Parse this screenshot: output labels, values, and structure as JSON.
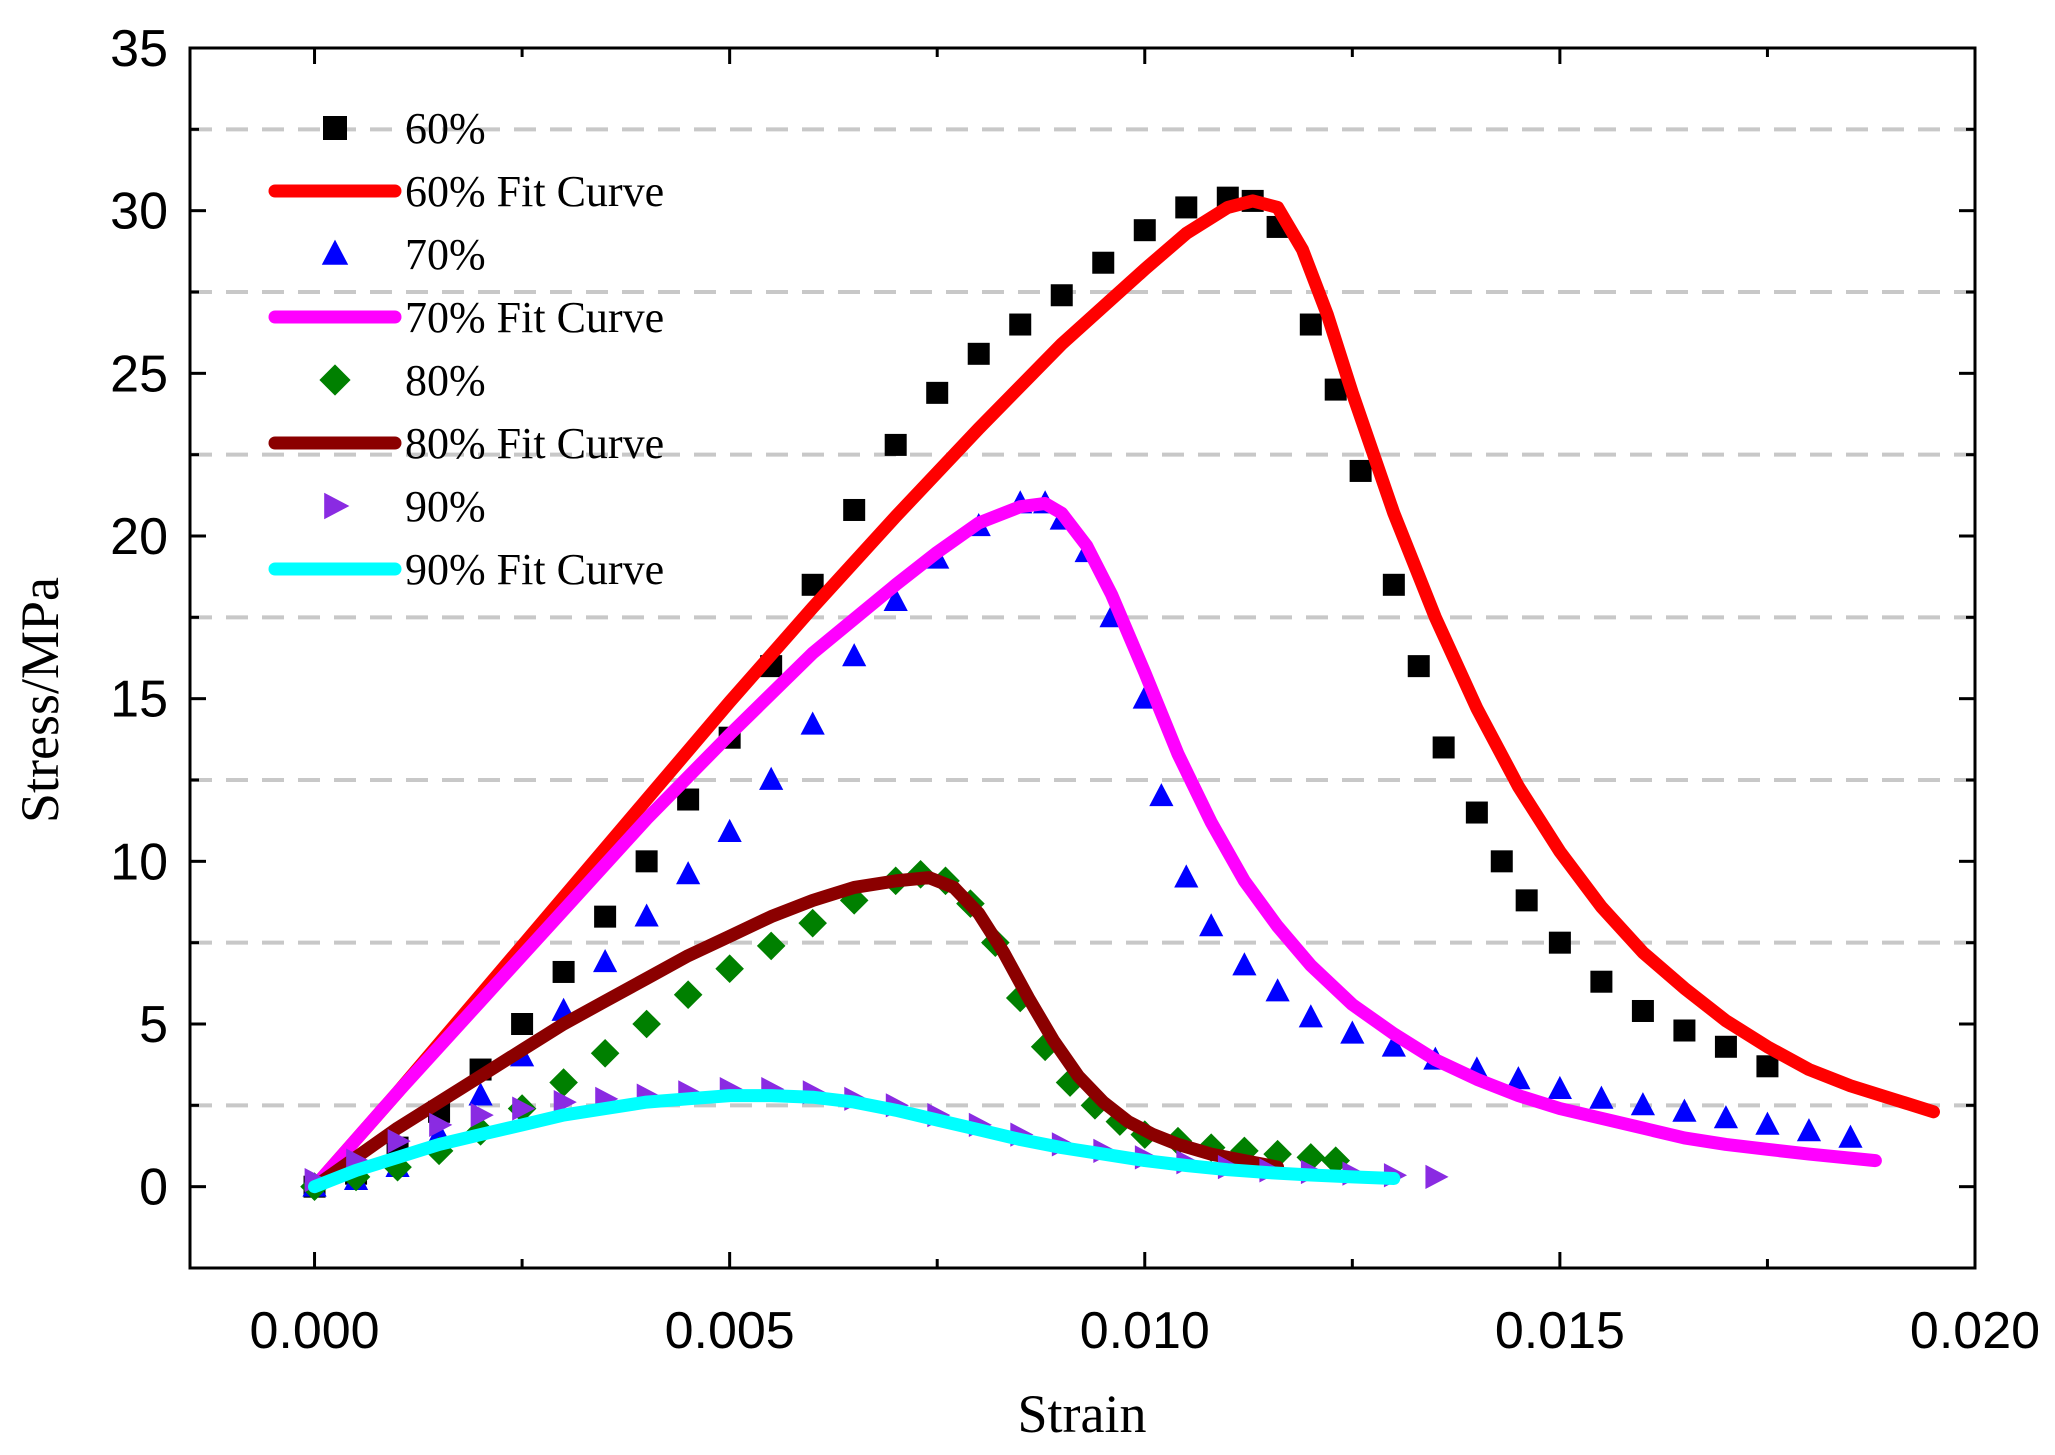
{
  "chart_data": {
    "type": "scatter",
    "title": "",
    "xlabel": "Strain",
    "ylabel": "Stress/MPa",
    "xlim": [
      -0.0015,
      0.02
    ],
    "ylim": [
      -2.5,
      35
    ],
    "xticks": [
      0.0,
      0.005,
      0.01,
      0.015,
      0.02
    ],
    "xtick_labels": [
      "0.000",
      "0.005",
      "0.010",
      "0.015",
      "0.020"
    ],
    "yticks": [
      0,
      5,
      10,
      15,
      20,
      25,
      30,
      35
    ],
    "ytick_labels": [
      "0",
      "5",
      "10",
      "15",
      "20",
      "25",
      "30",
      "35"
    ],
    "grid_dashed_y": [
      2.5,
      7.5,
      12.5,
      17.5,
      22.5,
      27.5,
      32.5
    ],
    "legend_position": "top-left",
    "series": [
      {
        "name": "60%",
        "kind": "markers",
        "marker": "square",
        "color": "#000000",
        "x": [
          0.0,
          0.0005,
          0.001,
          0.0015,
          0.002,
          0.0025,
          0.003,
          0.0035,
          0.004,
          0.0045,
          0.005,
          0.0055,
          0.006,
          0.0065,
          0.007,
          0.0075,
          0.008,
          0.0085,
          0.009,
          0.0095,
          0.01,
          0.0105,
          0.011,
          0.0113,
          0.0116,
          0.012,
          0.0123,
          0.0126,
          0.013,
          0.0133,
          0.0136,
          0.014,
          0.0143,
          0.0146,
          0.015,
          0.0155,
          0.016,
          0.0165,
          0.017,
          0.0175
        ],
        "y": [
          0.0,
          0.4,
          1.2,
          2.3,
          3.6,
          5.0,
          6.6,
          8.3,
          10.0,
          11.9,
          13.8,
          16.0,
          18.5,
          20.8,
          22.8,
          24.4,
          25.6,
          26.5,
          27.4,
          28.4,
          29.4,
          30.1,
          30.4,
          30.3,
          29.5,
          26.5,
          24.5,
          22.0,
          18.5,
          16.0,
          13.5,
          11.5,
          10.0,
          8.8,
          7.5,
          6.3,
          5.4,
          4.8,
          4.3,
          3.7
        ]
      },
      {
        "name": "60% Fit Curve",
        "kind": "line",
        "color": "#ff0000",
        "x": [
          0.0,
          0.001,
          0.002,
          0.003,
          0.004,
          0.005,
          0.006,
          0.007,
          0.008,
          0.009,
          0.01,
          0.0105,
          0.011,
          0.0113,
          0.0116,
          0.0119,
          0.0122,
          0.0125,
          0.013,
          0.0135,
          0.014,
          0.0145,
          0.015,
          0.0155,
          0.016,
          0.0165,
          0.017,
          0.0175,
          0.018,
          0.0185,
          0.019,
          0.0195
        ],
        "y": [
          0.0,
          2.9,
          5.9,
          8.9,
          11.9,
          14.9,
          17.8,
          20.6,
          23.3,
          25.9,
          28.2,
          29.3,
          30.1,
          30.3,
          30.1,
          28.8,
          26.8,
          24.4,
          20.7,
          17.5,
          14.7,
          12.3,
          10.3,
          8.6,
          7.2,
          6.1,
          5.1,
          4.3,
          3.6,
          3.1,
          2.7,
          2.3
        ]
      },
      {
        "name": "70%",
        "kind": "markers",
        "marker": "triangle-up",
        "color": "#0000ff",
        "x": [
          0.0,
          0.0005,
          0.001,
          0.0015,
          0.002,
          0.0025,
          0.003,
          0.0035,
          0.004,
          0.0045,
          0.005,
          0.0055,
          0.006,
          0.0065,
          0.007,
          0.0075,
          0.008,
          0.0085,
          0.0088,
          0.009,
          0.0093,
          0.0096,
          0.01,
          0.0102,
          0.0105,
          0.0108,
          0.0112,
          0.0116,
          0.012,
          0.0125,
          0.013,
          0.0135,
          0.014,
          0.0145,
          0.015,
          0.0155,
          0.016,
          0.0165,
          0.017,
          0.0175,
          0.018,
          0.0185
        ],
        "y": [
          0.0,
          0.2,
          0.6,
          1.6,
          2.8,
          4.0,
          5.4,
          6.9,
          8.3,
          9.6,
          10.9,
          12.5,
          14.2,
          16.3,
          18.0,
          19.3,
          20.3,
          21.0,
          21.0,
          20.5,
          19.5,
          17.5,
          15.0,
          12.0,
          9.5,
          8.0,
          6.8,
          6.0,
          5.2,
          4.7,
          4.3,
          3.9,
          3.6,
          3.3,
          3.0,
          2.7,
          2.5,
          2.3,
          2.1,
          1.9,
          1.7,
          1.5
        ]
      },
      {
        "name": "70% Fit Curve",
        "kind": "line",
        "color": "#ff00ff",
        "x": [
          0.0,
          0.001,
          0.002,
          0.003,
          0.004,
          0.005,
          0.006,
          0.007,
          0.0075,
          0.008,
          0.0085,
          0.0088,
          0.009,
          0.0093,
          0.0096,
          0.01,
          0.0104,
          0.0108,
          0.0112,
          0.0116,
          0.012,
          0.0125,
          0.013,
          0.0135,
          0.014,
          0.0145,
          0.015,
          0.0155,
          0.016,
          0.0165,
          0.017,
          0.0175,
          0.018,
          0.0188
        ],
        "y": [
          0.0,
          2.9,
          5.7,
          8.5,
          11.3,
          13.9,
          16.4,
          18.5,
          19.5,
          20.4,
          20.9,
          21.0,
          20.7,
          19.7,
          18.2,
          15.8,
          13.3,
          11.2,
          9.4,
          8.0,
          6.8,
          5.6,
          4.7,
          3.9,
          3.3,
          2.8,
          2.4,
          2.1,
          1.8,
          1.5,
          1.3,
          1.15,
          1.0,
          0.8
        ]
      },
      {
        "name": "80%",
        "kind": "markers",
        "marker": "diamond",
        "color": "#008000",
        "x": [
          0.0,
          0.0005,
          0.001,
          0.0015,
          0.002,
          0.0025,
          0.003,
          0.0035,
          0.004,
          0.0045,
          0.005,
          0.0055,
          0.006,
          0.0065,
          0.007,
          0.0073,
          0.0076,
          0.0079,
          0.0082,
          0.0085,
          0.0088,
          0.0091,
          0.0094,
          0.0097,
          0.01,
          0.0104,
          0.0108,
          0.0112,
          0.0116,
          0.012,
          0.0123
        ],
        "y": [
          0.0,
          0.3,
          0.6,
          1.1,
          1.7,
          2.4,
          3.2,
          4.1,
          5.0,
          5.9,
          6.7,
          7.4,
          8.1,
          8.8,
          9.4,
          9.6,
          9.4,
          8.7,
          7.5,
          5.8,
          4.3,
          3.2,
          2.5,
          2.0,
          1.6,
          1.4,
          1.2,
          1.1,
          1.0,
          0.9,
          0.8
        ]
      },
      {
        "name": "80% Fit Curve",
        "kind": "line",
        "color": "#8b0000",
        "x": [
          0.0,
          0.0005,
          0.001,
          0.0015,
          0.002,
          0.0025,
          0.003,
          0.0035,
          0.004,
          0.0045,
          0.005,
          0.0055,
          0.006,
          0.0065,
          0.007,
          0.0074,
          0.0077,
          0.008,
          0.0083,
          0.0086,
          0.0089,
          0.0092,
          0.0095,
          0.0098,
          0.0101,
          0.0104,
          0.0108,
          0.0112,
          0.0116
        ],
        "y": [
          0.0,
          0.9,
          1.8,
          2.6,
          3.4,
          4.2,
          5.0,
          5.7,
          6.4,
          7.1,
          7.7,
          8.3,
          8.8,
          9.2,
          9.4,
          9.5,
          9.2,
          8.4,
          7.2,
          5.8,
          4.5,
          3.4,
          2.6,
          2.0,
          1.6,
          1.3,
          1.0,
          0.8,
          0.6
        ]
      },
      {
        "name": "90%",
        "kind": "markers",
        "marker": "triangle-right",
        "color": "#8a2be2",
        "x": [
          0.0,
          0.0005,
          0.001,
          0.0015,
          0.002,
          0.0025,
          0.003,
          0.0035,
          0.004,
          0.0045,
          0.005,
          0.0055,
          0.006,
          0.0065,
          0.007,
          0.0075,
          0.008,
          0.0085,
          0.009,
          0.0095,
          0.01,
          0.0105,
          0.011,
          0.0115,
          0.012,
          0.0125,
          0.013,
          0.0135
        ],
        "y": [
          0.2,
          0.8,
          1.4,
          1.9,
          2.2,
          2.4,
          2.6,
          2.7,
          2.8,
          2.9,
          3.0,
          3.0,
          2.9,
          2.7,
          2.5,
          2.2,
          1.9,
          1.6,
          1.3,
          1.1,
          0.9,
          0.75,
          0.6,
          0.5,
          0.45,
          0.4,
          0.35,
          0.3
        ]
      },
      {
        "name": "90% Fit Curve",
        "kind": "line",
        "color": "#00ffff",
        "x": [
          0.0,
          0.0005,
          0.001,
          0.0015,
          0.002,
          0.0025,
          0.003,
          0.0035,
          0.004,
          0.0045,
          0.005,
          0.0055,
          0.006,
          0.0065,
          0.007,
          0.0075,
          0.008,
          0.0085,
          0.009,
          0.0095,
          0.01,
          0.0105,
          0.011,
          0.0115,
          0.012,
          0.0125,
          0.013
        ],
        "y": [
          0.0,
          0.5,
          0.9,
          1.3,
          1.6,
          1.9,
          2.2,
          2.4,
          2.6,
          2.7,
          2.8,
          2.8,
          2.75,
          2.6,
          2.35,
          2.05,
          1.75,
          1.45,
          1.2,
          1.0,
          0.8,
          0.65,
          0.52,
          0.43,
          0.36,
          0.3,
          0.25
        ]
      }
    ]
  }
}
